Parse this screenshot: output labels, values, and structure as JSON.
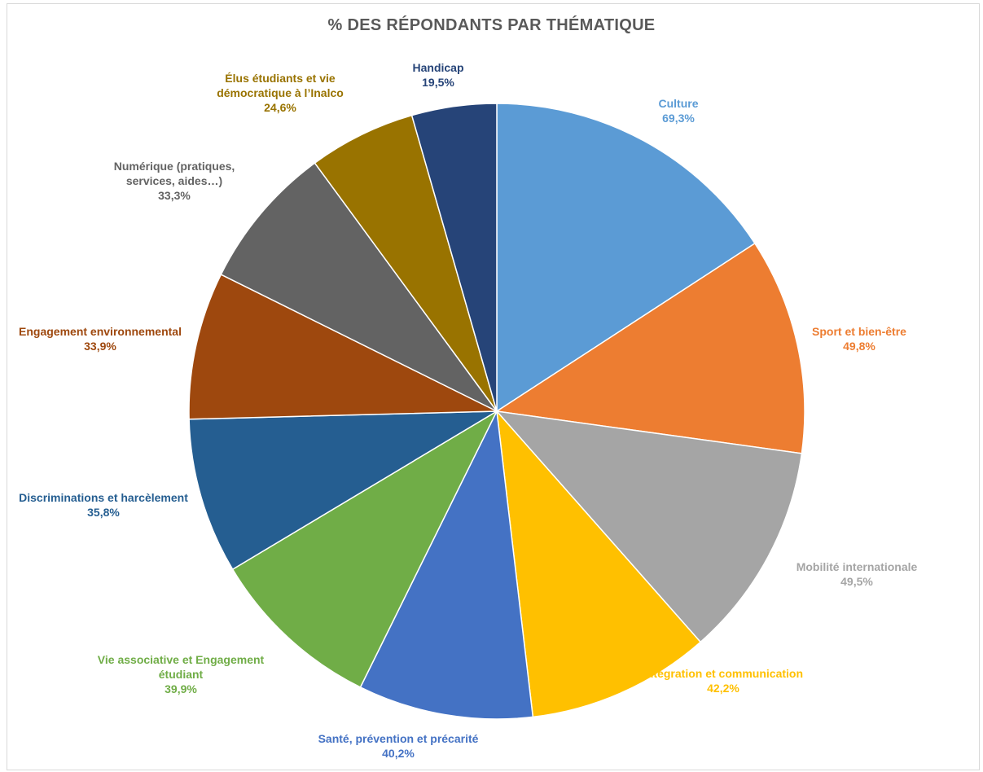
{
  "chart_data": {
    "type": "pie",
    "title": "% DES RÉPONDANTS PAR THÉMATIQUE",
    "slices": [
      {
        "label": [
          "Culture"
        ],
        "value_label": "69,3%",
        "value": 69.3,
        "color": "#5B9BD5",
        "label_color": "#5B9BD5"
      },
      {
        "label": [
          "Sport et bien-être"
        ],
        "value_label": "49,8%",
        "value": 49.8,
        "color": "#ED7D31",
        "label_color": "#ED7D31"
      },
      {
        "label": [
          "Mobilité internationale"
        ],
        "value_label": "49,5%",
        "value": 49.5,
        "color": "#A5A5A5",
        "label_color": "#A5A5A5"
      },
      {
        "label": [
          "Intégration et communication"
        ],
        "value_label": "42,2%",
        "value": 42.2,
        "color": "#FFC000",
        "label_color": "#FFC000"
      },
      {
        "label": [
          "Santé, prévention et précarité"
        ],
        "value_label": "40,2%",
        "value": 40.2,
        "color": "#4472C4",
        "label_color": "#4472C4"
      },
      {
        "label": [
          "Vie associative et Engagement",
          "étudiant"
        ],
        "value_label": "39,9%",
        "value": 39.9,
        "color": "#70AD47",
        "label_color": "#70AD47"
      },
      {
        "label": [
          "Discriminations et harcèlement"
        ],
        "value_label": "35,8%",
        "value": 35.8,
        "color": "#255E91",
        "label_color": "#255E91"
      },
      {
        "label": [
          "Engagement environnemental"
        ],
        "value_label": "33,9%",
        "value": 33.9,
        "color": "#9E480E",
        "label_color": "#9E480E"
      },
      {
        "label": [
          "Numérique (pratiques,",
          "services, aides…)"
        ],
        "value_label": "33,3%",
        "value": 33.3,
        "color": "#636363",
        "label_color": "#636363"
      },
      {
        "label": [
          "Élus étudiants et vie",
          "démocratique à l’Inalco"
        ],
        "value_label": "24,6%",
        "value": 24.6,
        "color": "#997300",
        "label_color": "#997300"
      },
      {
        "label": [
          "Handicap"
        ],
        "value_label": "19,5%",
        "value": 19.5,
        "color": "#264478",
        "label_color": "#264478"
      }
    ]
  }
}
